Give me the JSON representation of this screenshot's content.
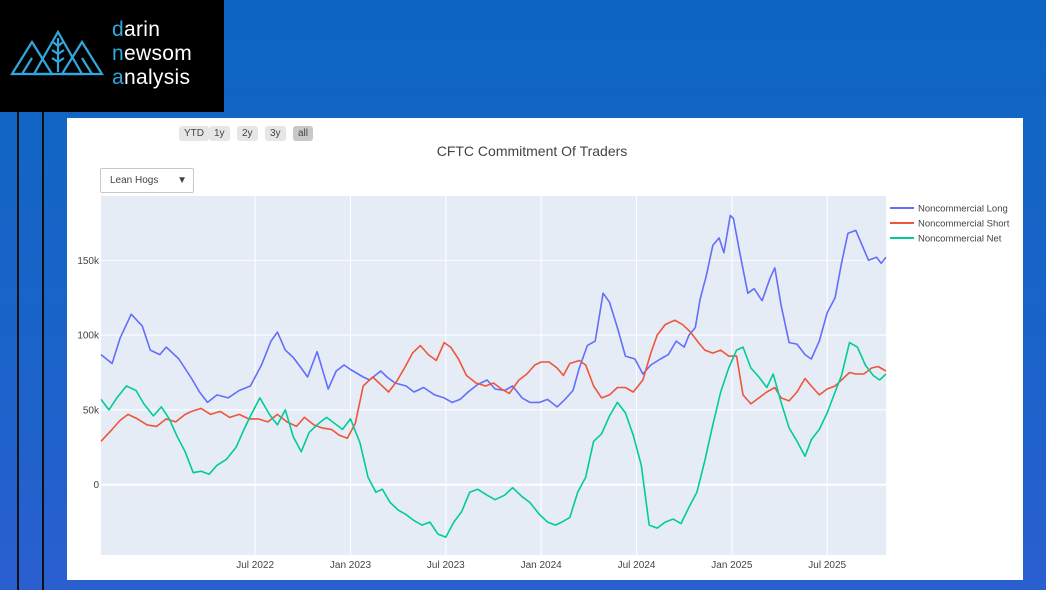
{
  "logo": {
    "line1_accent": "d",
    "line1_rest": "arin",
    "line2_accent": "n",
    "line2_mid": "ew",
    "line2_rest": "som",
    "line3_accent": "a",
    "line3_rest": "nalysis"
  },
  "range_buttons": [
    "YTD",
    "1y",
    "2y",
    "3y",
    "all"
  ],
  "range_active": "all",
  "dropdown": {
    "selected": "Lean Hogs"
  },
  "colors": {
    "long": "#636efa",
    "short": "#ef553b",
    "net": "#00cc96",
    "plot_bg": "#e5ecf6",
    "accent": "#2fa8e0"
  },
  "chart_data": {
    "type": "line",
    "title": "CFTC Commitment Of Traders",
    "x_ticks": [
      "Jul 2022",
      "Jan 2023",
      "Jul 2023",
      "Jan 2024",
      "Jul 2024",
      "Jan 2025",
      "Jul 2025"
    ],
    "y_ticks": [
      "0",
      "50k",
      "100k",
      "150k"
    ],
    "x_tick_months": [
      18,
      24,
      30,
      36,
      42,
      48,
      54
    ],
    "y_tick_values": [
      0,
      50000,
      100000,
      150000
    ],
    "x_range": [
      8.3,
      57.7
    ],
    "y_range": [
      -47000,
      193000
    ],
    "grid": true,
    "legend_position": "right",
    "series": [
      {
        "name": "Noncommercial Long",
        "color": "#636efa",
        "points": [
          [
            8.3,
            87000
          ],
          [
            9,
            81000
          ],
          [
            9.5,
            98000
          ],
          [
            10.2,
            114000
          ],
          [
            10.9,
            106000
          ],
          [
            11.4,
            90000
          ],
          [
            12,
            87000
          ],
          [
            12.4,
            92000
          ],
          [
            13.2,
            84000
          ],
          [
            14,
            71000
          ],
          [
            14.5,
            62000
          ],
          [
            15,
            55000
          ],
          [
            15.6,
            60000
          ],
          [
            16.3,
            58000
          ],
          [
            17,
            63000
          ],
          [
            17.7,
            66000
          ],
          [
            18.4,
            80000
          ],
          [
            19,
            96000
          ],
          [
            19.4,
            102000
          ],
          [
            19.9,
            90000
          ],
          [
            20.4,
            85000
          ],
          [
            20.9,
            78000
          ],
          [
            21.3,
            72000
          ],
          [
            21.9,
            89000
          ],
          [
            22.6,
            64000
          ],
          [
            23.1,
            76000
          ],
          [
            23.6,
            80000
          ],
          [
            24,
            77000
          ],
          [
            24.8,
            72000
          ],
          [
            25.2,
            70000
          ],
          [
            25.9,
            76000
          ],
          [
            26.3,
            72000
          ],
          [
            26.8,
            68000
          ],
          [
            27.5,
            66000
          ],
          [
            28,
            62000
          ],
          [
            28.6,
            65000
          ],
          [
            29.3,
            60000
          ],
          [
            29.9,
            58000
          ],
          [
            30.4,
            55000
          ],
          [
            30.9,
            57000
          ],
          [
            31.4,
            62000
          ],
          [
            32,
            67000
          ],
          [
            32.6,
            70000
          ],
          [
            33.1,
            64000
          ],
          [
            33.7,
            63000
          ],
          [
            34.2,
            66000
          ],
          [
            34.8,
            58000
          ],
          [
            35.3,
            55000
          ],
          [
            35.9,
            55000
          ],
          [
            36.4,
            57000
          ],
          [
            37,
            52000
          ],
          [
            37.5,
            57000
          ],
          [
            38,
            63000
          ],
          [
            38.4,
            78000
          ],
          [
            38.9,
            93000
          ],
          [
            39.4,
            96000
          ],
          [
            39.9,
            128000
          ],
          [
            40.3,
            122000
          ],
          [
            40.8,
            105000
          ],
          [
            41.3,
            86000
          ],
          [
            41.9,
            84000
          ],
          [
            42.4,
            74000
          ],
          [
            42.9,
            80000
          ],
          [
            43.5,
            84000
          ],
          [
            44,
            87000
          ],
          [
            44.5,
            96000
          ],
          [
            45,
            92000
          ],
          [
            45.3,
            100000
          ],
          [
            45.7,
            105000
          ],
          [
            46,
            124000
          ],
          [
            46.4,
            140000
          ],
          [
            46.8,
            160000
          ],
          [
            47.2,
            165000
          ],
          [
            47.5,
            155000
          ],
          [
            47.9,
            180000
          ],
          [
            48.1,
            178000
          ],
          [
            48.5,
            155000
          ],
          [
            49,
            128000
          ],
          [
            49.4,
            131000
          ],
          [
            49.9,
            123000
          ],
          [
            50.4,
            138000
          ],
          [
            50.7,
            145000
          ],
          [
            51.1,
            120000
          ],
          [
            51.6,
            95000
          ],
          [
            52.1,
            94000
          ],
          [
            52.6,
            87000
          ],
          [
            53,
            84000
          ],
          [
            53.5,
            96000
          ],
          [
            54,
            115000
          ],
          [
            54.5,
            125000
          ],
          [
            54.9,
            148000
          ],
          [
            55.3,
            168000
          ],
          [
            55.8,
            170000
          ],
          [
            56.2,
            160000
          ],
          [
            56.6,
            150000
          ],
          [
            57.1,
            152000
          ],
          [
            57.4,
            148000
          ],
          [
            57.7,
            152000
          ]
        ]
      },
      {
        "name": "Noncommercial Short",
        "color": "#ef553b",
        "points": [
          [
            8.3,
            29000
          ],
          [
            9,
            37000
          ],
          [
            9.5,
            43000
          ],
          [
            10,
            47000
          ],
          [
            10.6,
            44000
          ],
          [
            11.2,
            40000
          ],
          [
            11.8,
            39000
          ],
          [
            12.4,
            44000
          ],
          [
            13,
            42000
          ],
          [
            13.6,
            47000
          ],
          [
            14,
            49000
          ],
          [
            14.6,
            51000
          ],
          [
            15.2,
            47000
          ],
          [
            15.8,
            49000
          ],
          [
            16.4,
            45000
          ],
          [
            17,
            47000
          ],
          [
            17.6,
            44000
          ],
          [
            18.2,
            44000
          ],
          [
            18.8,
            42000
          ],
          [
            19.4,
            47000
          ],
          [
            20,
            42000
          ],
          [
            20.6,
            39000
          ],
          [
            21.1,
            45000
          ],
          [
            21.7,
            40000
          ],
          [
            22.2,
            38000
          ],
          [
            22.8,
            37000
          ],
          [
            23.3,
            33000
          ],
          [
            23.8,
            31000
          ],
          [
            24.3,
            41000
          ],
          [
            24.8,
            66000
          ],
          [
            25.4,
            72000
          ],
          [
            25.8,
            68000
          ],
          [
            26.4,
            62000
          ],
          [
            26.9,
            69000
          ],
          [
            27.4,
            78000
          ],
          [
            27.9,
            88000
          ],
          [
            28.4,
            93000
          ],
          [
            28.9,
            87000
          ],
          [
            29.4,
            83000
          ],
          [
            29.9,
            95000
          ],
          [
            30.3,
            92000
          ],
          [
            30.8,
            84000
          ],
          [
            31.3,
            73000
          ],
          [
            31.9,
            68000
          ],
          [
            32.5,
            66000
          ],
          [
            33,
            68000
          ],
          [
            33.5,
            64000
          ],
          [
            34,
            61000
          ],
          [
            34.6,
            70000
          ],
          [
            35.1,
            74000
          ],
          [
            35.6,
            80000
          ],
          [
            36,
            82000
          ],
          [
            36.5,
            82000
          ],
          [
            37,
            78000
          ],
          [
            37.4,
            73000
          ],
          [
            37.8,
            81000
          ],
          [
            38.4,
            83000
          ],
          [
            38.8,
            80000
          ],
          [
            39.3,
            66000
          ],
          [
            39.8,
            58000
          ],
          [
            40.3,
            60000
          ],
          [
            40.8,
            65000
          ],
          [
            41.3,
            65000
          ],
          [
            41.8,
            62000
          ],
          [
            42.4,
            70000
          ],
          [
            42.9,
            88000
          ],
          [
            43.3,
            100000
          ],
          [
            43.8,
            107000
          ],
          [
            44.4,
            110000
          ],
          [
            44.9,
            107000
          ],
          [
            45.4,
            102000
          ],
          [
            45.9,
            95000
          ],
          [
            46.3,
            90000
          ],
          [
            46.8,
            88000
          ],
          [
            47.3,
            90000
          ],
          [
            47.8,
            86000
          ],
          [
            48.3,
            86000
          ],
          [
            48.7,
            60000
          ],
          [
            49.2,
            54000
          ],
          [
            49.7,
            58000
          ],
          [
            50.2,
            62000
          ],
          [
            50.7,
            65000
          ],
          [
            51.1,
            58000
          ],
          [
            51.6,
            56000
          ],
          [
            52.1,
            62000
          ],
          [
            52.6,
            71000
          ],
          [
            53,
            66000
          ],
          [
            53.5,
            60000
          ],
          [
            54,
            64000
          ],
          [
            54.5,
            66000
          ],
          [
            54.9,
            70000
          ],
          [
            55.4,
            75000
          ],
          [
            55.8,
            74000
          ],
          [
            56.3,
            74000
          ],
          [
            56.8,
            78000
          ],
          [
            57.2,
            79000
          ],
          [
            57.7,
            76000
          ]
        ]
      },
      {
        "name": "Noncommercial Net",
        "color": "#00cc96",
        "points": [
          [
            8.3,
            57000
          ],
          [
            8.8,
            50000
          ],
          [
            9.3,
            58000
          ],
          [
            9.9,
            66000
          ],
          [
            10.5,
            63000
          ],
          [
            11,
            54000
          ],
          [
            11.6,
            46000
          ],
          [
            12.1,
            52000
          ],
          [
            12.6,
            44000
          ],
          [
            13.1,
            32000
          ],
          [
            13.6,
            22000
          ],
          [
            14.1,
            8000
          ],
          [
            14.6,
            9000
          ],
          [
            15.1,
            7000
          ],
          [
            15.6,
            13000
          ],
          [
            16.2,
            17000
          ],
          [
            16.8,
            25000
          ],
          [
            17.3,
            37000
          ],
          [
            17.8,
            48000
          ],
          [
            18.3,
            58000
          ],
          [
            18.9,
            47000
          ],
          [
            19.4,
            40000
          ],
          [
            19.9,
            50000
          ],
          [
            20.4,
            32000
          ],
          [
            20.9,
            22000
          ],
          [
            21.4,
            35000
          ],
          [
            22,
            41000
          ],
          [
            22.5,
            45000
          ],
          [
            23,
            41000
          ],
          [
            23.5,
            37000
          ],
          [
            24,
            44000
          ],
          [
            24.6,
            28000
          ],
          [
            25.1,
            5000
          ],
          [
            25.6,
            -5000
          ],
          [
            26,
            -3000
          ],
          [
            26.5,
            -12000
          ],
          [
            27,
            -17000
          ],
          [
            27.5,
            -20000
          ],
          [
            28,
            -24000
          ],
          [
            28.5,
            -27000
          ],
          [
            29,
            -25000
          ],
          [
            29.5,
            -33000
          ],
          [
            30,
            -35000
          ],
          [
            30.5,
            -25000
          ],
          [
            31,
            -18000
          ],
          [
            31.5,
            -5000
          ],
          [
            32,
            -3000
          ],
          [
            32.6,
            -7000
          ],
          [
            33.1,
            -10000
          ],
          [
            33.7,
            -7000
          ],
          [
            34.2,
            -2000
          ],
          [
            34.8,
            -8000
          ],
          [
            35.3,
            -12000
          ],
          [
            35.9,
            -20000
          ],
          [
            36.4,
            -25000
          ],
          [
            36.9,
            -27000
          ],
          [
            37.3,
            -25000
          ],
          [
            37.8,
            -22000
          ],
          [
            38.3,
            -5000
          ],
          [
            38.8,
            5000
          ],
          [
            39.3,
            29000
          ],
          [
            39.8,
            34000
          ],
          [
            40.3,
            46000
          ],
          [
            40.8,
            55000
          ],
          [
            41.3,
            48000
          ],
          [
            41.8,
            33000
          ],
          [
            42.3,
            13000
          ],
          [
            42.8,
            -27000
          ],
          [
            43.3,
            -29000
          ],
          [
            43.8,
            -25000
          ],
          [
            44.3,
            -23000
          ],
          [
            44.8,
            -26000
          ],
          [
            45.3,
            -15000
          ],
          [
            45.8,
            -5000
          ],
          [
            46.3,
            16000
          ],
          [
            46.8,
            40000
          ],
          [
            47.3,
            62000
          ],
          [
            47.8,
            78000
          ],
          [
            48.3,
            90000
          ],
          [
            48.7,
            92000
          ],
          [
            49.2,
            78000
          ],
          [
            49.7,
            72000
          ],
          [
            50.2,
            65000
          ],
          [
            50.6,
            74000
          ],
          [
            51.1,
            55000
          ],
          [
            51.6,
            38000
          ],
          [
            52.1,
            29000
          ],
          [
            52.6,
            19000
          ],
          [
            53,
            30000
          ],
          [
            53.5,
            37000
          ],
          [
            54,
            48000
          ],
          [
            54.5,
            62000
          ],
          [
            54.9,
            73000
          ],
          [
            55.4,
            95000
          ],
          [
            55.9,
            92000
          ],
          [
            56.4,
            80000
          ],
          [
            56.9,
            73000
          ],
          [
            57.3,
            70000
          ],
          [
            57.7,
            74000
          ]
        ]
      }
    ]
  }
}
